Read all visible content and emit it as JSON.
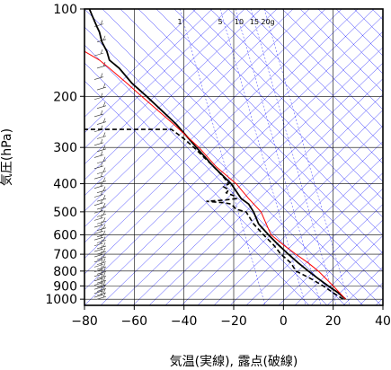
{
  "chart_data": {
    "type": "line",
    "title": "",
    "xlabel": "気温(実線), 露点(破線)",
    "ylabel": "気圧(hPa)",
    "xlim": [
      -80,
      40
    ],
    "ylim": [
      1050,
      100
    ],
    "y_scale": "log",
    "x_ticks": [
      -80,
      -60,
      -40,
      -20,
      0,
      20,
      40
    ],
    "x_tick_labels": [
      "−80",
      "−60",
      "−40",
      "−20",
      "0",
      "20",
      "40"
    ],
    "y_ticks": [
      100,
      200,
      300,
      400,
      500,
      600,
      700,
      800,
      900,
      1000
    ],
    "y_tick_labels": [
      "100",
      "200",
      "300",
      "400",
      "500",
      "600",
      "700",
      "800",
      "900",
      "1000"
    ],
    "grid": true,
    "mixing_ratio_labels": [
      "1",
      "5",
      "10",
      "15",
      "20g"
    ],
    "colors": {
      "temperature": "#000000",
      "dewpoint": "#000000",
      "reference": "#ff0000",
      "background_lines": "#3333ff",
      "grid": "#000000"
    },
    "series": [
      {
        "style": "solid",
        "points": [
          [
            25,
            1000
          ],
          [
            22,
            950
          ],
          [
            18,
            900
          ],
          [
            14,
            850
          ],
          [
            10,
            800
          ],
          [
            6,
            750
          ],
          [
            2,
            700
          ],
          [
            -2,
            650
          ],
          [
            -6,
            600
          ],
          [
            -10,
            550
          ],
          [
            -12,
            500
          ],
          [
            -14,
            470
          ],
          [
            -17,
            450
          ],
          [
            -21,
            400
          ],
          [
            -28,
            350
          ],
          [
            -35,
            300
          ],
          [
            -43,
            250
          ],
          [
            -55,
            200
          ],
          [
            -61,
            180
          ],
          [
            -66,
            160
          ],
          [
            -70,
            150
          ],
          [
            -71,
            140
          ],
          [
            -73,
            130
          ],
          [
            -74,
            120
          ],
          [
            -75,
            115
          ],
          [
            -76,
            110
          ],
          [
            -77,
            105
          ],
          [
            -78,
            100
          ]
        ]
      },
      {
        "style": "dashed",
        "points": [
          [
            24,
            1000
          ],
          [
            20,
            950
          ],
          [
            16,
            900
          ],
          [
            11,
            850
          ],
          [
            5,
            800
          ],
          [
            3,
            750
          ],
          [
            -1,
            700
          ],
          [
            -4,
            650
          ],
          [
            -8,
            600
          ],
          [
            -12,
            550
          ],
          [
            -15,
            500
          ],
          [
            -19,
            490
          ],
          [
            -21,
            470
          ],
          [
            -24,
            465
          ],
          [
            -31,
            460
          ],
          [
            -23,
            455
          ],
          [
            -19,
            450
          ],
          [
            -20,
            440
          ],
          [
            -23,
            430
          ],
          [
            -22,
            420
          ],
          [
            -24,
            410
          ],
          [
            -22,
            400
          ],
          [
            -24,
            380
          ],
          [
            -28,
            350
          ],
          [
            -36,
            300
          ],
          [
            -40,
            280
          ],
          [
            -45,
            260
          ],
          [
            -80,
            260
          ]
        ]
      },
      {
        "style": "solid-red",
        "points": [
          [
            25,
            1000
          ],
          [
            20,
            900
          ],
          [
            14,
            800
          ],
          [
            10,
            750
          ],
          [
            5,
            700
          ],
          [
            0,
            650
          ],
          [
            -5,
            600
          ],
          [
            -9,
            500
          ],
          [
            -14,
            450
          ],
          [
            -19,
            400
          ],
          [
            -27,
            350
          ],
          [
            -34,
            300
          ],
          [
            -44,
            250
          ],
          [
            -57,
            200
          ],
          [
            -63,
            180
          ],
          [
            -70,
            160
          ],
          [
            -74,
            150
          ],
          [
            -77,
            145
          ],
          [
            -80,
            140
          ]
        ]
      }
    ]
  }
}
